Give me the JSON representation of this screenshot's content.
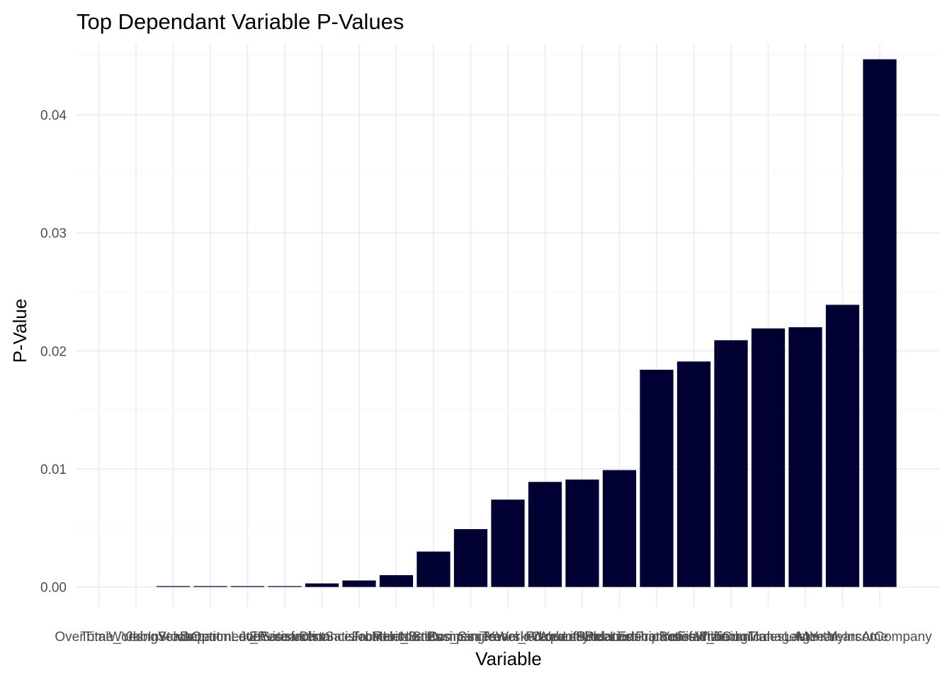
{
  "chart_data": {
    "type": "bar",
    "title": "Top Dependant Variable P-Values",
    "xlabel": "Variable",
    "ylabel": "P-Value",
    "ylim": [
      -0.0017,
      0.046
    ],
    "yticks": [
      0.0,
      0.01,
      0.02,
      0.03,
      0.04
    ],
    "ytick_labels": [
      "0.00",
      "0.01",
      "0.02",
      "0.03",
      "0.04"
    ],
    "grid": true,
    "bar_color": "#000033",
    "categories": [
      "OverTime_Yes",
      "TotalWorkingYears",
      "JobInvolvement",
      "StockOptionLevel",
      "Department_Research",
      "JobSatisfaction",
      "EnvironmentSatisfaction",
      "DistanceFromHome",
      "JobRole_Sales",
      "MaritalStatus_Single",
      "NumCompaniesWorked",
      "BusinessTravel_Frequently",
      "YearsInCurrentRole",
      "WorkLifeBalance",
      "YearsSinceLastPromotion",
      "RelationshipSatisfaction",
      "EducationField_Technical",
      "YearsWithCurrManager",
      "TrainingTimesLastYear",
      "Age",
      "MonthlyIncome",
      "YearsAtCompany"
    ],
    "values": [
      0,
      0,
      5e-05,
      5e-05,
      5e-05,
      5e-05,
      0.0003,
      0.00055,
      0.001,
      0.003,
      0.0049,
      0.0074,
      0.0089,
      0.0091,
      0.0099,
      0.0184,
      0.0191,
      0.0209,
      0.0219,
      0.022,
      0.0239,
      0.0447
    ]
  }
}
